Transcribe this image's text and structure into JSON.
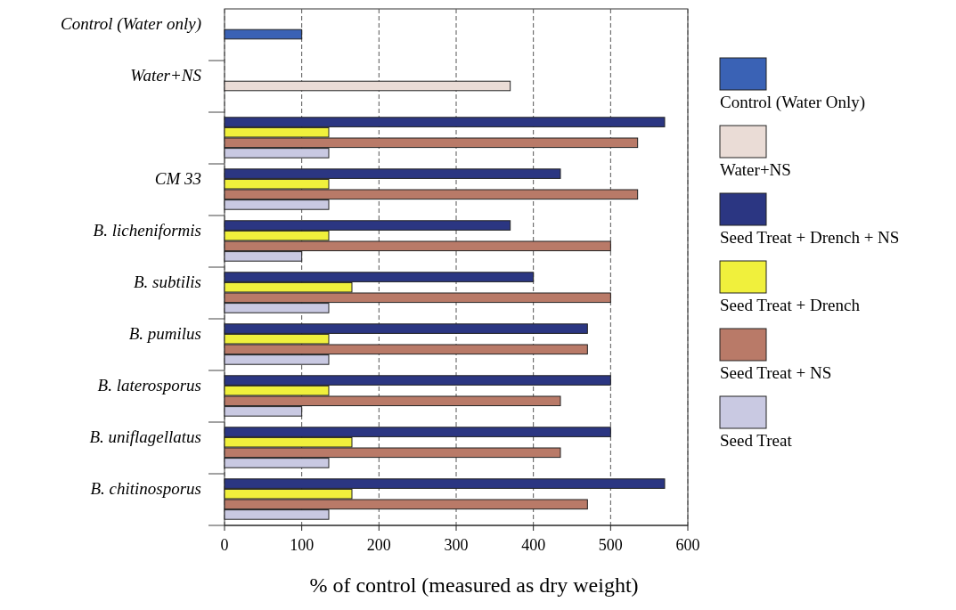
{
  "chart_data": {
    "type": "bar",
    "orientation": "horizontal",
    "xlabel": "% of control (measured as dry weight)",
    "categories": [
      "Control (Water only)",
      "Water+NS",
      null,
      "CM 33",
      "B. licheniformis",
      "B. subtilis",
      "B. pumilus",
      "B. laterosporus",
      "B. uniflagellatus",
      "B. chitinosporus"
    ],
    "series": [
      {
        "name": "Control (Water Only)",
        "color": "#3a62b5",
        "values": [
          100,
          null,
          null,
          null,
          null,
          null,
          null,
          null,
          null,
          null
        ]
      },
      {
        "name": "Water+NS",
        "color": "#eadcd6",
        "values": [
          null,
          370,
          null,
          null,
          null,
          null,
          null,
          null,
          null,
          null
        ]
      },
      {
        "name": "Seed Treat + Drench + NS",
        "color": "#2b3682",
        "values": [
          null,
          null,
          570,
          435,
          370,
          400,
          470,
          500,
          500,
          570
        ]
      },
      {
        "name": "Seed Treat + Drench",
        "color": "#f0f03c",
        "values": [
          null,
          null,
          135,
          135,
          135,
          165,
          135,
          135,
          165,
          165
        ]
      },
      {
        "name": "Seed Treat + NS",
        "color": "#b97a68",
        "values": [
          null,
          null,
          535,
          535,
          500,
          500,
          470,
          435,
          435,
          470
        ]
      },
      {
        "name": "Seed Treat",
        "color": "#c9c9e2",
        "values": [
          null,
          null,
          135,
          135,
          100,
          135,
          135,
          100,
          135,
          135
        ]
      }
    ],
    "xlim": [
      0,
      600
    ],
    "xticks": [
      0,
      100,
      200,
      300,
      400,
      500,
      600
    ],
    "grid": "x",
    "legend": "right"
  }
}
